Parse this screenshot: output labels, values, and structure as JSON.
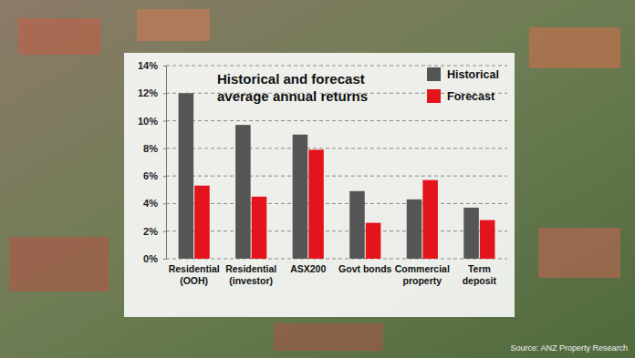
{
  "chart_data": {
    "type": "bar",
    "title": "Historical and forecast average annual returns",
    "source": "Source: ANZ Property Research",
    "categories": [
      "Residential (OOH)",
      "Residential (investor)",
      "ASX200",
      "Govt bonds",
      "Commercial property",
      "Term deposit"
    ],
    "series": [
      {
        "name": "Historical",
        "color": "#555555",
        "values": [
          12.0,
          9.7,
          9.0,
          4.9,
          4.3,
          3.7
        ]
      },
      {
        "name": "Forecast",
        "color": "#e3141b",
        "values": [
          5.3,
          4.5,
          7.9,
          2.6,
          5.7,
          2.8
        ]
      }
    ],
    "ylim": [
      0,
      14
    ],
    "yticks": [
      {
        "value": 0,
        "label": "0%"
      },
      {
        "value": 2,
        "label": "2%"
      },
      {
        "value": 4,
        "label": "4%"
      },
      {
        "value": 6,
        "label": "6%"
      },
      {
        "value": 8,
        "label": "8%"
      },
      {
        "value": 10,
        "label": "10%"
      },
      {
        "value": 12,
        "label": "12%"
      },
      {
        "value": 14,
        "label": "14%"
      }
    ],
    "grid": true,
    "legend": "top-right"
  }
}
